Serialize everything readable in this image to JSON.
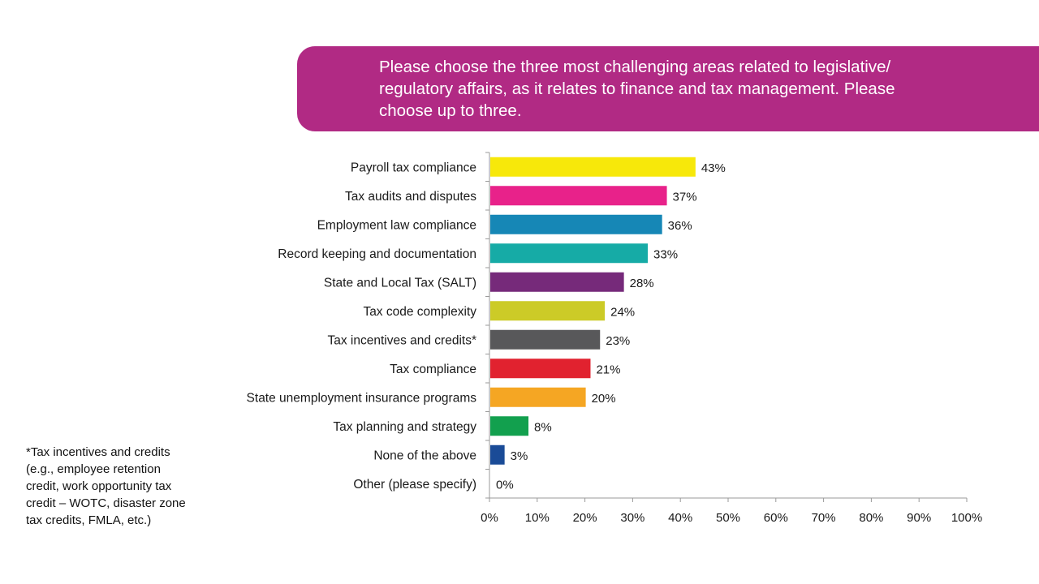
{
  "question": {
    "lines": [
      "Please choose the three most challenging areas related to legislative/",
      "regulatory affairs, as it relates to finance and tax management. Please",
      "choose up to three."
    ],
    "background_color": "#b12a84"
  },
  "footnote": {
    "lines": [
      "*Tax incentives and credits",
      "(e.g., employee retention",
      "credit, work opportunity tax",
      "credit – WOTC, disaster zone",
      "tax credits, FMLA, etc.)"
    ]
  },
  "chart_data": {
    "type": "bar",
    "orientation": "horizontal",
    "categories": [
      "Payroll tax compliance",
      "Tax audits and disputes",
      "Employment law compliance",
      "Record keeping and documentation",
      "State and Local Tax (SALT)",
      "Tax code complexity",
      "Tax incentives and credits*",
      "Tax compliance",
      "State unemployment insurance programs",
      "Tax planning and strategy",
      "None of the above",
      "Other (please specify)"
    ],
    "values": [
      43,
      37,
      36,
      33,
      28,
      24,
      23,
      21,
      20,
      8,
      3,
      0
    ],
    "value_labels": [
      "43%",
      "37%",
      "36%",
      "33%",
      "28%",
      "24%",
      "23%",
      "21%",
      "20%",
      "8%",
      "3%",
      "0%"
    ],
    "colors": [
      "#f7e80a",
      "#e8228a",
      "#1687b6",
      "#16aba6",
      "#762a7a",
      "#cccb27",
      "#58585a",
      "#e1222f",
      "#f5a623",
      "#12a04e",
      "#1a4b97",
      "#ffffff"
    ],
    "xlim": [
      0,
      100
    ],
    "x_ticks": [
      "0%",
      "10%",
      "20%",
      "30%",
      "40%",
      "50%",
      "60%",
      "70%",
      "80%",
      "90%",
      "100%"
    ],
    "title": "",
    "xlabel": "",
    "ylabel": "",
    "grid": false,
    "legend": "none"
  }
}
